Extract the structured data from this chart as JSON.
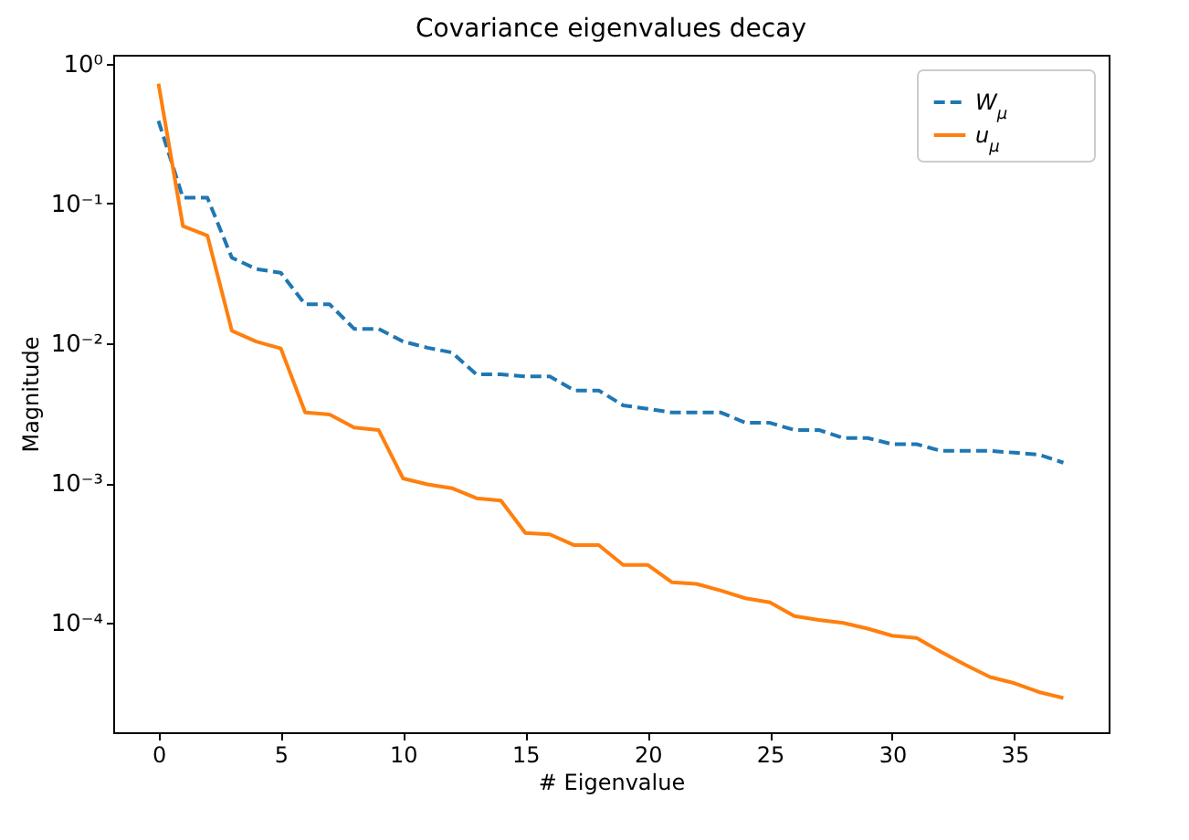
{
  "chart_data": {
    "type": "line",
    "title": "Covariance eigenvalues decay",
    "xlabel": "# Eigenvalue",
    "ylabel": "Magnitude",
    "x": [
      0,
      1,
      2,
      3,
      4,
      5,
      6,
      7,
      8,
      9,
      10,
      11,
      12,
      13,
      14,
      15,
      16,
      17,
      18,
      19,
      20,
      21,
      22,
      23,
      24,
      25,
      26,
      27,
      28,
      29,
      30,
      31,
      32,
      33,
      34,
      35,
      36,
      37
    ],
    "series": [
      {
        "name": "W$_{μ}$",
        "color": "#1f77b4",
        "line_style": "dashed",
        "values": [
          0.39,
          0.11,
          0.11,
          0.041,
          0.034,
          0.032,
          0.019,
          0.019,
          0.0127,
          0.0127,
          0.0103,
          0.0093,
          0.0086,
          0.006,
          0.006,
          0.0058,
          0.0058,
          0.0046,
          0.0046,
          0.0036,
          0.0034,
          0.0032,
          0.0032,
          0.0032,
          0.0027,
          0.0027,
          0.0024,
          0.0024,
          0.0021,
          0.0021,
          0.0019,
          0.0019,
          0.0017,
          0.0017,
          0.0017,
          0.00165,
          0.0016,
          0.0014
        ]
      },
      {
        "name": "u$_{μ}$",
        "color": "#ff7f0e",
        "line_style": "solid",
        "values": [
          0.72,
          0.069,
          0.059,
          0.0123,
          0.0103,
          0.0092,
          0.0032,
          0.0031,
          0.0025,
          0.0024,
          0.00108,
          0.00098,
          0.00092,
          0.00078,
          0.00075,
          0.00044,
          0.00043,
          0.00036,
          0.00036,
          0.00026,
          0.00026,
          0.000195,
          0.00019,
          0.00017,
          0.00015,
          0.00014,
          0.000112,
          0.000105,
          0.0001,
          9.1e-05,
          8.1e-05,
          7.8e-05,
          6.2e-05,
          5e-05,
          4.1e-05,
          3.7e-05,
          3.2e-05,
          2.9e-05
        ]
      }
    ],
    "xlim": [
      -1.85,
      38.85
    ],
    "xticks": [
      0,
      5,
      10,
      15,
      20,
      25,
      30,
      35
    ],
    "ylim": [
      1.65e-05,
      1.16
    ],
    "yticks": [
      {
        "value": 0.0001,
        "label": "10⁻⁴"
      },
      {
        "value": 0.001,
        "label": "10⁻³"
      },
      {
        "value": 0.01,
        "label": "10⁻²"
      },
      {
        "value": 0.1,
        "label": "10⁻¹"
      },
      {
        "value": 1,
        "label": "10⁰"
      }
    ],
    "log": "y",
    "grid": false,
    "legend": "top right",
    "marker": "none"
  }
}
